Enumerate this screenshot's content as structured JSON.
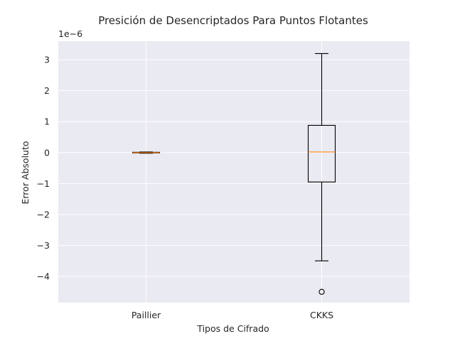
{
  "chart_data": {
    "type": "box",
    "title": "Presición de Desencriptados Para Puntos Flotantes",
    "xlabel": "Tipos de Cifrado",
    "ylabel": "Error Absoluto",
    "offset_text": "1e−6",
    "y_scale_factor": 1e-06,
    "ylim": [
      -4.85,
      3.6
    ],
    "yticks": [
      -4,
      -3,
      -2,
      -1,
      0,
      1,
      2,
      3
    ],
    "ytick_labels": [
      "−4",
      "−3",
      "−2",
      "−1",
      "0",
      "1",
      "2",
      "3"
    ],
    "grid": true,
    "categories": [
      "Paillier",
      "CKKS"
    ],
    "boxes": [
      {
        "label": "Paillier",
        "whisker_low": -0.02,
        "q1": -0.01,
        "median": 0.0,
        "q3": 0.01,
        "whisker_high": 0.02,
        "outliers": []
      },
      {
        "label": "CKKS",
        "whisker_low": -3.5,
        "q1": -0.95,
        "median": 0.02,
        "q3": 0.88,
        "whisker_high": 3.2,
        "outliers": [
          -4.5
        ]
      }
    ]
  },
  "colors": {
    "plot_background": "#eaeaf2",
    "grid": "#ffffff",
    "box": "#000000",
    "median": "#ff7f0e",
    "text": "#262626"
  }
}
